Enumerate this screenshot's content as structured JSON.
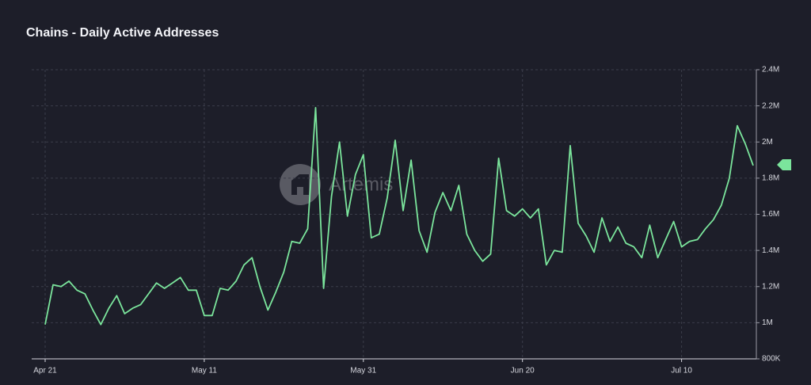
{
  "chart_data": {
    "type": "line",
    "title": "Chains - Daily Active Addresses",
    "watermark": "Artemis",
    "color": "#7be59c",
    "grid": true,
    "categories": [
      "Apr 21",
      null,
      null,
      null,
      null,
      null,
      null,
      null,
      null,
      null,
      null,
      null,
      null,
      null,
      null,
      null,
      null,
      null,
      null,
      null,
      "May 11",
      null,
      null,
      null,
      null,
      null,
      null,
      null,
      null,
      null,
      null,
      null,
      null,
      null,
      null,
      null,
      null,
      null,
      null,
      null,
      "May 31",
      null,
      null,
      null,
      null,
      null,
      null,
      null,
      null,
      null,
      null,
      null,
      null,
      null,
      null,
      null,
      null,
      null,
      null,
      null,
      "Jun 20",
      null,
      null,
      null,
      null,
      null,
      null,
      null,
      null,
      null,
      null,
      null,
      null,
      null,
      null,
      null,
      null,
      null,
      null,
      null,
      "Jul 10",
      null,
      null,
      null,
      null,
      null,
      null,
      null,
      null,
      null
    ],
    "values": [
      990000,
      1210000,
      1200000,
      1230000,
      1180000,
      1160000,
      1070000,
      990000,
      1080000,
      1150000,
      1050000,
      1080000,
      1100000,
      1160000,
      1220000,
      1190000,
      1220000,
      1250000,
      1180000,
      1180000,
      1040000,
      1040000,
      1190000,
      1180000,
      1230000,
      1320000,
      1360000,
      1200000,
      1070000,
      1170000,
      1280000,
      1450000,
      1440000,
      1520000,
      2190000,
      1190000,
      1700000,
      2000000,
      1590000,
      1820000,
      1930000,
      1470000,
      1490000,
      1690000,
      2010000,
      1620000,
      1900000,
      1510000,
      1390000,
      1610000,
      1720000,
      1620000,
      1760000,
      1490000,
      1400000,
      1340000,
      1380000,
      1910000,
      1620000,
      1590000,
      1630000,
      1580000,
      1630000,
      1320000,
      1400000,
      1390000,
      1980000,
      1550000,
      1480000,
      1390000,
      1580000,
      1450000,
      1530000,
      1440000,
      1420000,
      1360000,
      1540000,
      1360000,
      1460000,
      1560000,
      1420000,
      1450000,
      1460000,
      1520000,
      1570000,
      1650000,
      1800000,
      2090000,
      1990000,
      1870000
    ],
    "ylim": [
      800000,
      2400000
    ],
    "yticks": [
      {
        "value": 800000,
        "label": "800K"
      },
      {
        "value": 1000000,
        "label": "1M"
      },
      {
        "value": 1200000,
        "label": "1.2M"
      },
      {
        "value": 1400000,
        "label": "1.4M"
      },
      {
        "value": 1600000,
        "label": "1.6M"
      },
      {
        "value": 1800000,
        "label": "1.8M"
      },
      {
        "value": 2000000,
        "label": "2M"
      },
      {
        "value": 2200000,
        "label": "2.2M"
      },
      {
        "value": 2400000,
        "label": "2.4M"
      }
    ]
  }
}
